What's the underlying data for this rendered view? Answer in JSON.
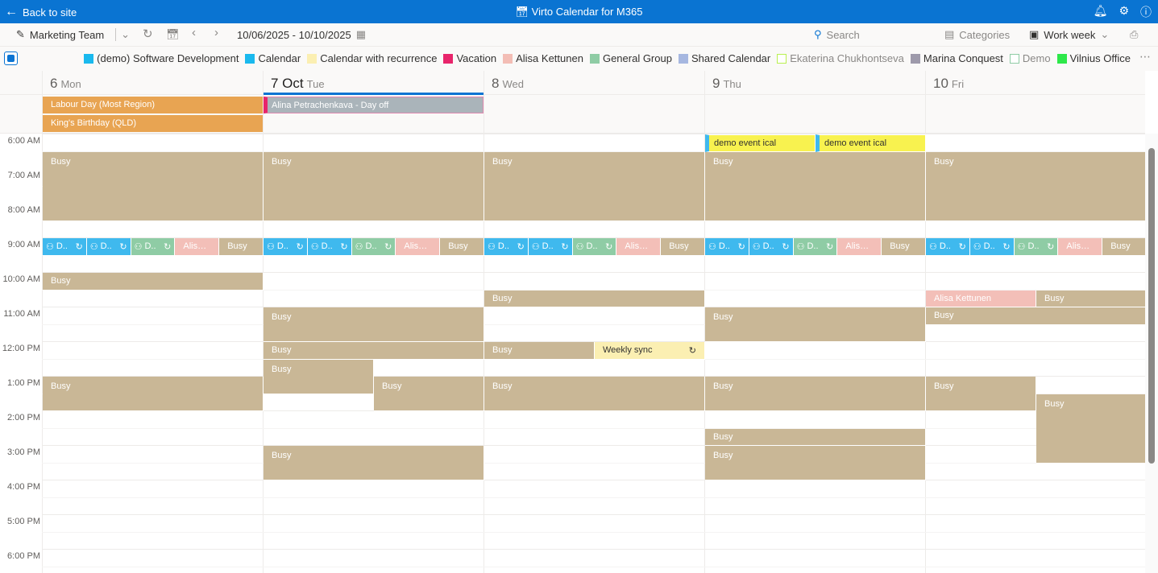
{
  "topbar": {
    "back_label": "Back to site",
    "title": "Virto Calendar for M365"
  },
  "toolbar": {
    "calendar_name": "Marketing Team",
    "date_range": "10/06/2025 - 10/10/2025",
    "search_placeholder": "Search",
    "categories_label": "Categories",
    "view_label": "Work week"
  },
  "legend": [
    {
      "label": "(demo) Software Development",
      "color": "#1ab9ee"
    },
    {
      "label": "Calendar",
      "color": "#1ab9ee"
    },
    {
      "label": "Calendar with recurrence",
      "color": "#fbefb2"
    },
    {
      "label": "Vacation",
      "color": "#e8256b"
    },
    {
      "label": "Alisa Kettunen",
      "color": "#f3bdb5"
    },
    {
      "label": "General Group",
      "color": "#8fcca5"
    },
    {
      "label": "Shared Calendar",
      "color": "#a6b7e0"
    },
    {
      "label": "Ekaterina Chukhontseva",
      "color": "#b9f04f",
      "outline": true,
      "muted": true
    },
    {
      "label": "Marina Conquest",
      "color": "#9e9aab"
    },
    {
      "label": "Demo",
      "color": "#8fcca5",
      "outline": true,
      "muted": true
    },
    {
      "label": "Vilnius Office",
      "color": "#2ee84a"
    }
  ],
  "colors": {
    "busy": "#c9b796",
    "teams": "#3fb9ee",
    "green": "#8fcca5",
    "alisa": "#f3bfb8",
    "yellow": "#f8f24f",
    "sync": "#fbefb2",
    "holiday": "#e8a452",
    "dayoff": "#aab4ba",
    "accent": "#0a74d2"
  },
  "days": [
    {
      "num": "6",
      "name": "Mon",
      "today": false
    },
    {
      "num": "7 Oct",
      "name": "Tue",
      "today": true
    },
    {
      "num": "8",
      "name": "Wed",
      "today": false
    },
    {
      "num": "9",
      "name": "Thu",
      "today": false
    },
    {
      "num": "10",
      "name": "Fri",
      "today": false
    }
  ],
  "allday": [
    {
      "day": 0,
      "row": 0,
      "label": "Labour Day (Most Region)",
      "kind": "holiday"
    },
    {
      "day": 0,
      "row": 1,
      "label": "King's Birthday (QLD)",
      "kind": "holiday"
    },
    {
      "day": 1,
      "row": 0,
      "label": "Alina Petrachenkava - Day off",
      "kind": "dayoff"
    }
  ],
  "hours": [
    "6:00 AM",
    "7:00 AM",
    "8:00 AM",
    "9:00 AM",
    "10:00 AM",
    "11:00 AM",
    "12:00 PM",
    "1:00 PM",
    "2:00 PM",
    "3:00 PM",
    "4:00 PM",
    "5:00 PM",
    "6:00 PM"
  ],
  "events": [
    {
      "day": 0,
      "start": 6.5,
      "end": 8.5,
      "label": "Busy",
      "kind": "busy"
    },
    {
      "day": 0,
      "start": 9,
      "end": 9.5,
      "label": "D..",
      "kind": "teams",
      "recurring": true
    },
    {
      "day": 0,
      "start": 9,
      "end": 9.5,
      "label": "D..",
      "kind": "teams",
      "recurring": true
    },
    {
      "day": 0,
      "start": 9,
      "end": 9.5,
      "label": "D..",
      "kind": "green",
      "recurring": true
    },
    {
      "day": 0,
      "start": 9,
      "end": 9.5,
      "label": "Alisa Kettunen",
      "kind": "alisa"
    },
    {
      "day": 0,
      "start": 9,
      "end": 9.5,
      "label": "Busy",
      "kind": "busy"
    },
    {
      "day": 0,
      "start": 10,
      "end": 10.5,
      "label": "Busy",
      "kind": "busy"
    },
    {
      "day": 0,
      "start": 13,
      "end": 14,
      "label": "Busy",
      "kind": "busy"
    },
    {
      "day": 1,
      "start": 6.5,
      "end": 8.5,
      "label": "Busy",
      "kind": "busy"
    },
    {
      "day": 1,
      "start": 9,
      "end": 9.5,
      "label": "D..",
      "kind": "teams",
      "recurring": true
    },
    {
      "day": 1,
      "start": 9,
      "end": 9.5,
      "label": "D..",
      "kind": "teams",
      "recurring": true
    },
    {
      "day": 1,
      "start": 9,
      "end": 9.5,
      "label": "D..",
      "kind": "green",
      "recurring": true
    },
    {
      "day": 1,
      "start": 9,
      "end": 9.5,
      "label": "Alisa Kettunen",
      "kind": "alisa"
    },
    {
      "day": 1,
      "start": 9,
      "end": 9.5,
      "label": "Busy",
      "kind": "busy"
    },
    {
      "day": 1,
      "start": 11,
      "end": 12,
      "label": "Busy",
      "kind": "busy"
    },
    {
      "day": 1,
      "start": 12,
      "end": 12.5,
      "label": "Busy",
      "kind": "busy"
    },
    {
      "day": 1,
      "start": 12.5,
      "end": 13.5,
      "label": "Busy",
      "kind": "busy"
    },
    {
      "day": 1,
      "start": 13,
      "end": 14,
      "label": "Busy",
      "kind": "busy"
    },
    {
      "day": 1,
      "start": 15,
      "end": 16,
      "label": "Busy",
      "kind": "busy"
    },
    {
      "day": 2,
      "start": 6.5,
      "end": 8.5,
      "label": "Busy",
      "kind": "busy"
    },
    {
      "day": 2,
      "start": 9,
      "end": 9.5,
      "label": "D..",
      "kind": "teams",
      "recurring": true
    },
    {
      "day": 2,
      "start": 9,
      "end": 9.5,
      "label": "D..",
      "kind": "teams",
      "recurring": true
    },
    {
      "day": 2,
      "start": 9,
      "end": 9.5,
      "label": "D..",
      "kind": "green",
      "recurring": true
    },
    {
      "day": 2,
      "start": 9,
      "end": 9.5,
      "label": "Alisa Kettunen",
      "kind": "alisa"
    },
    {
      "day": 2,
      "start": 9,
      "end": 9.5,
      "label": "Busy",
      "kind": "busy"
    },
    {
      "day": 2,
      "start": 10.5,
      "end": 11,
      "label": "Busy",
      "kind": "busy"
    },
    {
      "day": 2,
      "start": 12,
      "end": 12.5,
      "label": "Busy",
      "kind": "busy"
    },
    {
      "day": 2,
      "start": 12,
      "end": 12.5,
      "label": "Weekly sync",
      "kind": "sync",
      "recurring": true
    },
    {
      "day": 2,
      "start": 13,
      "end": 14,
      "label": "Busy",
      "kind": "busy"
    },
    {
      "day": 3,
      "start": 6,
      "end": 6.5,
      "label": "demo event ical",
      "kind": "yellow"
    },
    {
      "day": 3,
      "start": 6,
      "end": 6.5,
      "label": "demo event ical",
      "kind": "yellow"
    },
    {
      "day": 3,
      "start": 6.5,
      "end": 8.5,
      "label": "Busy",
      "kind": "busy"
    },
    {
      "day": 3,
      "start": 9,
      "end": 9.5,
      "label": "D..",
      "kind": "teams",
      "recurring": true
    },
    {
      "day": 3,
      "start": 9,
      "end": 9.5,
      "label": "D..",
      "kind": "teams",
      "recurring": true
    },
    {
      "day": 3,
      "start": 9,
      "end": 9.5,
      "label": "D..",
      "kind": "green",
      "recurring": true
    },
    {
      "day": 3,
      "start": 9,
      "end": 9.5,
      "label": "Alisa Kettunen",
      "kind": "alisa"
    },
    {
      "day": 3,
      "start": 9,
      "end": 9.5,
      "label": "Busy",
      "kind": "busy"
    },
    {
      "day": 3,
      "start": 11,
      "end": 12,
      "label": "Busy",
      "kind": "busy"
    },
    {
      "day": 3,
      "start": 13,
      "end": 14,
      "label": "Busy",
      "kind": "busy"
    },
    {
      "day": 3,
      "start": 14.5,
      "end": 15,
      "label": "Busy",
      "kind": "busy"
    },
    {
      "day": 3,
      "start": 15,
      "end": 16,
      "label": "Busy",
      "kind": "busy"
    },
    {
      "day": 4,
      "start": 6.5,
      "end": 8.5,
      "label": "Busy",
      "kind": "busy"
    },
    {
      "day": 4,
      "start": 9,
      "end": 9.5,
      "label": "D..",
      "kind": "teams",
      "recurring": true
    },
    {
      "day": 4,
      "start": 9,
      "end": 9.5,
      "label": "D..",
      "kind": "teams",
      "recurring": true
    },
    {
      "day": 4,
      "start": 9,
      "end": 9.5,
      "label": "D..",
      "kind": "green",
      "recurring": true
    },
    {
      "day": 4,
      "start": 9,
      "end": 9.5,
      "label": "Alisa Kettunen",
      "kind": "alisa"
    },
    {
      "day": 4,
      "start": 9,
      "end": 9.5,
      "label": "Busy",
      "kind": "busy"
    },
    {
      "day": 4,
      "start": 10.5,
      "end": 11,
      "label": "Alisa Kettunen",
      "kind": "alisa"
    },
    {
      "day": 4,
      "start": 10.5,
      "end": 11,
      "label": "Busy",
      "kind": "busy"
    },
    {
      "day": 4,
      "start": 11,
      "end": 11.5,
      "label": "Busy",
      "kind": "busy"
    },
    {
      "day": 4,
      "start": 13,
      "end": 14,
      "label": "Busy",
      "kind": "busy"
    },
    {
      "day": 4,
      "start": 13.5,
      "end": 15.5,
      "label": "Busy",
      "kind": "busy"
    }
  ]
}
